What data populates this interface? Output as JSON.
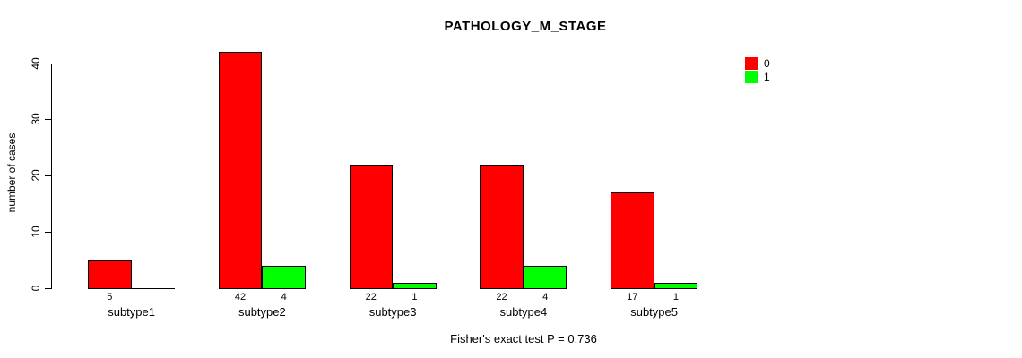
{
  "chart_data": {
    "type": "bar",
    "title": "PATHOLOGY_M_STAGE",
    "xlabel": "",
    "ylabel": "number of cases",
    "caption": "Fisher's exact test P = 0.736",
    "categories": [
      "subtype1",
      "subtype2",
      "subtype3",
      "subtype4",
      "subtype5"
    ],
    "series": [
      {
        "name": "0",
        "color": "#FF0000",
        "values": [
          5,
          42,
          22,
          22,
          17
        ]
      },
      {
        "name": "1",
        "color": "#00FF00",
        "values": [
          0,
          4,
          1,
          4,
          1
        ]
      }
    ],
    "bar_value_labels": [
      [
        "5",
        "42",
        "22",
        "22",
        "17"
      ],
      [
        "",
        "4",
        "1",
        "4",
        "1"
      ]
    ],
    "yticks": [
      0,
      10,
      20,
      30,
      40
    ],
    "ylim": [
      0,
      42
    ],
    "grid": false,
    "legend": {
      "position": "top-right",
      "entries": [
        {
          "label": "0",
          "color": "#FF0000"
        },
        {
          "label": "1",
          "color": "#00FF00"
        }
      ]
    },
    "colors": {
      "axis": "#000000",
      "text": "#000000",
      "background": "#FFFFFF"
    }
  }
}
